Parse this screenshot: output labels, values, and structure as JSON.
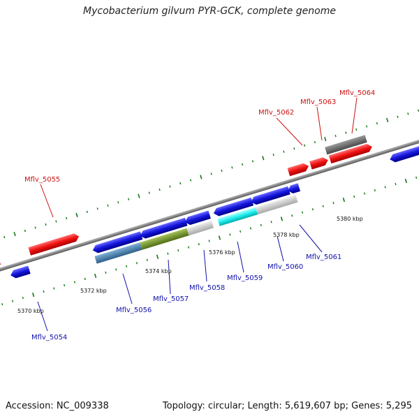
{
  "title": "Mycobacterium gilvum PYR-GCK, complete genome",
  "footer": {
    "accession": "Accession: NC_009338",
    "summary": "Topology: circular; Length: 5,619,607 bp; Genes: 5,295"
  },
  "kbp_labels": [
    "5370 kbp",
    "5372 kbp",
    "5374 kbp",
    "5376 kbp",
    "5378 kbp",
    "5380 kbp"
  ],
  "top_labels": [
    "Mflv_5055",
    "Mflv_5062",
    "Mflv_5063",
    "Mflv_5064"
  ],
  "bottom_labels": [
    "Mflv_5054",
    "Mflv_5056",
    "Mflv_5057",
    "Mflv_5058",
    "Mflv_5059",
    "Mflv_5060",
    "Mflv_5061"
  ],
  "colors": {
    "forward_gene": "#ee1111",
    "reverse_gene": "#1111dd",
    "backbone": "#8a8a8a",
    "tick": "#117711",
    "top_label": "#cc1111",
    "bottom_label": "#1111aa"
  }
}
